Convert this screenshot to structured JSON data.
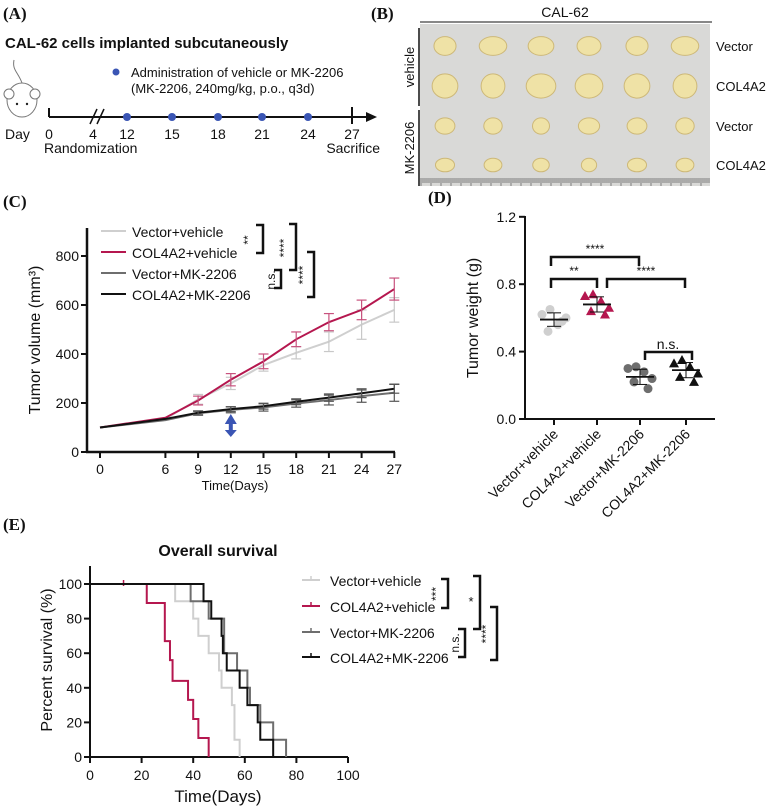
{
  "panel_labels": [
    "(A)",
    "(B)",
    "(C)",
    "(D)",
    "(E)"
  ],
  "colors": {
    "vector_vehicle": "#cfcfcf",
    "col4a2_vehicle": "#b5174f",
    "vector_mk": "#6e6e6e",
    "col4a2_mk": "#111111",
    "dose": "#3a55b4"
  },
  "panel_a": {
    "title": "CAL-62 cells implanted subcutaneously",
    "legend_line1": "Administration of vehicle or MK-2206",
    "legend_line2": "(MK-2206, 240mg/kg, p.o., q3d)",
    "day_label": "Day",
    "days": [
      "0",
      "4",
      "12",
      "15",
      "18",
      "21",
      "24",
      "27"
    ],
    "dose_days": [
      12,
      15,
      18,
      21,
      24
    ],
    "randomization": "Randomization",
    "sacrifice": "Sacrifice",
    "icon": "mouse-icon"
  },
  "panel_b": {
    "header": "CAL-62",
    "group_labels": [
      "vehicle",
      "MK-2206"
    ],
    "row_labels": [
      "Vector",
      "COL4A2",
      "Vector",
      "COL4A2"
    ]
  },
  "chart_data": [
    {
      "type": "line",
      "xlabel": "Time(Days)",
      "ylabel": "Tumor volume (mm³)",
      "ylim": [
        0,
        900
      ],
      "yticks": [
        "0",
        "200",
        "400",
        "600",
        "800"
      ],
      "x": [
        0,
        6,
        9,
        12,
        15,
        18,
        21,
        24,
        27
      ],
      "xticks": [
        "0",
        "6",
        "9",
        "12",
        "15",
        "18",
        "21",
        "24",
        "27"
      ],
      "series": [
        {
          "name": "Vector+vehicle",
          "values": [
            100,
            135,
            215,
            280,
            355,
            405,
            450,
            520,
            580
          ],
          "err": [
            5,
            8,
            20,
            25,
            25,
            25,
            40,
            60,
            50
          ]
        },
        {
          "name": "COL4A2+vehicle",
          "values": [
            100,
            140,
            210,
            295,
            370,
            460,
            530,
            580,
            665
          ],
          "err": [
            5,
            8,
            18,
            25,
            30,
            30,
            35,
            40,
            45
          ]
        },
        {
          "name": "Vector+MK-2206",
          "values": [
            100,
            130,
            158,
            172,
            182,
            198,
            212,
            228,
            242
          ],
          "err": [
            5,
            6,
            8,
            12,
            15,
            15,
            20,
            25,
            35
          ]
        },
        {
          "name": "COL4A2+MK-2206",
          "values": [
            100,
            135,
            160,
            175,
            187,
            205,
            222,
            240,
            258
          ],
          "err": [
            5,
            6,
            8,
            10,
            12,
            12,
            15,
            18,
            18
          ]
        }
      ],
      "annotation_arrow_day": 12,
      "significance": [
        "**",
        "****",
        "n.s.",
        "****"
      ]
    },
    {
      "type": "scatter",
      "ylabel": "Tumor weight (g)",
      "ylim": [
        0,
        1.2
      ],
      "yticks": [
        "0.0",
        "0.4",
        "0.8",
        "1.2"
      ],
      "categories": [
        "Vector+vehicle",
        "COL4A2+vehicle",
        "Vector+MK-2206",
        "COL4A2+MK-2206"
      ],
      "points": [
        [
          0.62,
          0.65,
          0.56,
          0.6,
          0.52,
          0.58
        ],
        [
          0.73,
          0.74,
          0.7,
          0.66,
          0.64,
          0.62
        ],
        [
          0.3,
          0.31,
          0.28,
          0.24,
          0.22,
          0.18
        ],
        [
          0.33,
          0.35,
          0.31,
          0.27,
          0.25,
          0.22
        ]
      ],
      "means": [
        0.59,
        0.68,
        0.25,
        0.29
      ],
      "sd": [
        0.04,
        0.045,
        0.045,
        0.045
      ],
      "markers": [
        "circle",
        "triangle",
        "circle",
        "triangle"
      ],
      "significance": [
        "****",
        "**",
        "****",
        "n.s."
      ]
    },
    {
      "type": "line",
      "title": "Overall survival",
      "xlabel": "Time(Days)",
      "ylabel": "Percent survival (%)",
      "xlim": [
        0,
        100
      ],
      "ylim": [
        0,
        100
      ],
      "xticks": [
        "0",
        "20",
        "40",
        "60",
        "80",
        "100"
      ],
      "yticks": [
        "0",
        "20",
        "40",
        "60",
        "80",
        "100"
      ],
      "series": [
        {
          "name": "Vector+vehicle",
          "steps": [
            [
              0,
              100
            ],
            [
              33,
              90
            ],
            [
              40,
              80
            ],
            [
              42,
              70
            ],
            [
              46,
              60
            ],
            [
              50,
              50
            ],
            [
              51,
              40
            ],
            [
              55,
              30
            ],
            [
              56,
              10
            ],
            [
              58,
              0
            ]
          ]
        },
        {
          "name": "COL4A2+vehicle",
          "steps": [
            [
              0,
              100
            ],
            [
              22,
              89
            ],
            [
              29,
              67
            ],
            [
              31,
              56
            ],
            [
              32,
              44
            ],
            [
              38,
              33
            ],
            [
              40,
              22
            ],
            [
              42,
              11
            ],
            [
              46,
              0
            ]
          ],
          "censored": [
            13
          ]
        },
        {
          "name": "Vector+MK-2206",
          "steps": [
            [
              0,
              100
            ],
            [
              39,
              90
            ],
            [
              46,
              80
            ],
            [
              52,
              60
            ],
            [
              57,
              50
            ],
            [
              61,
              40
            ],
            [
              62,
              30
            ],
            [
              66,
              20
            ],
            [
              71,
              10
            ],
            [
              76,
              0
            ]
          ]
        },
        {
          "name": "COL4A2+MK-2206",
          "steps": [
            [
              0,
              100
            ],
            [
              44,
              90
            ],
            [
              47,
              80
            ],
            [
              51,
              70
            ],
            [
              51.5,
              60
            ],
            [
              53,
              50
            ],
            [
              58,
              40
            ],
            [
              61,
              30
            ],
            [
              65,
              20
            ],
            [
              66,
              10
            ],
            [
              71,
              0
            ]
          ]
        }
      ],
      "significance": [
        "***",
        "*",
        "n.s.",
        "****"
      ]
    }
  ]
}
